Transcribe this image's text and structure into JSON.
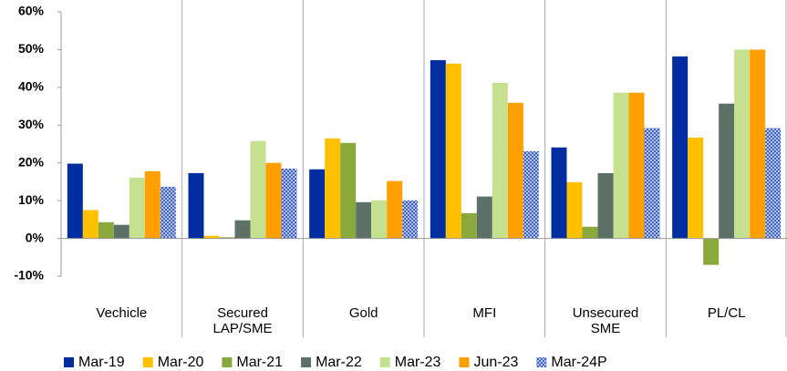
{
  "chart_data": {
    "type": "bar",
    "categories": [
      "Vechicle",
      "Secured LAP/SME",
      "Gold",
      "MFI",
      "Unsecured SME",
      "PL/CL"
    ],
    "series": [
      {
        "name": "Mar-19",
        "color": "#002da0",
        "values": [
          19.8,
          17.3,
          18.3,
          47.2,
          24.1,
          48.2
        ]
      },
      {
        "name": "Mar-20",
        "color": "#ffc000",
        "values": [
          7.5,
          0.7,
          26.5,
          46.3,
          14.9,
          26.7
        ]
      },
      {
        "name": "Mar-21",
        "color": "#8aa83c",
        "values": [
          4.3,
          0.3,
          25.3,
          6.7,
          3.1,
          -7
        ]
      },
      {
        "name": "Mar-22",
        "color": "#5e7168",
        "values": [
          3.6,
          4.8,
          9.6,
          11.1,
          17.3,
          35.7
        ]
      },
      {
        "name": "Mar-23",
        "color": "#c5e08f",
        "values": [
          16.1,
          25.8,
          10.1,
          41.2,
          38.6,
          50
        ]
      },
      {
        "name": "Jun-23",
        "color": "#ffa000",
        "values": [
          17.8,
          20,
          15.2,
          35.9,
          38.6,
          50
        ]
      },
      {
        "name": "Mar-24P",
        "color": "#3a5fcd",
        "pattern": "crosshatch",
        "values": [
          13.7,
          18.5,
          10.1,
          23.1,
          29.2,
          29.2
        ]
      }
    ],
    "ylim": [
      -10,
      60
    ],
    "yticks": [
      {
        "value": -10,
        "label": "-10%"
      },
      {
        "value": 0,
        "label": "0%"
      },
      {
        "value": 10,
        "label": "10%"
      },
      {
        "value": 20,
        "label": "20%"
      },
      {
        "value": 30,
        "label": "30%"
      },
      {
        "value": 40,
        "label": "40%"
      },
      {
        "value": 50,
        "label": "50%"
      },
      {
        "value": 60,
        "label": "60%"
      }
    ],
    "legend": "bottom"
  }
}
